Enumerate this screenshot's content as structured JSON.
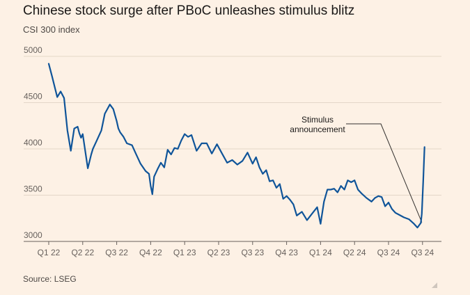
{
  "title": "Chinese stock surge after PBoC unleashes stimulus blitz",
  "subtitle": "CSI 300 index",
  "source": "Source: LSEG",
  "chart_data": {
    "type": "line",
    "title": "Chinese stock surge after PBoC unleashes stimulus blitz",
    "ylabel": "CSI 300 index",
    "ylim": [
      3000,
      5000
    ],
    "yticks": [
      3000,
      3500,
      4000,
      4500,
      5000
    ],
    "xlim": [
      0,
      11.1
    ],
    "xticks": [
      {
        "label": "Q1 22",
        "t": 0
      },
      {
        "label": "Q2 22",
        "t": 1
      },
      {
        "label": "Q3 22",
        "t": 2
      },
      {
        "label": "Q4 22",
        "t": 3
      },
      {
        "label": "Q1 23",
        "t": 4
      },
      {
        "label": "Q2 23",
        "t": 5
      },
      {
        "label": "Q3 23",
        "t": 6
      },
      {
        "label": "Q4 23",
        "t": 7
      },
      {
        "label": "Q1 24",
        "t": 8
      },
      {
        "label": "Q2 24",
        "t": 9
      },
      {
        "label": "Q3 24",
        "t": 10
      },
      {
        "label": "Q3 24",
        "t": 11
      }
    ],
    "grid": true,
    "line_color": "#0f5499",
    "annotation": {
      "lines": [
        "Stimulus",
        "announcement"
      ],
      "point": {
        "t": 10.98,
        "value": 3205
      }
    },
    "series": [
      {
        "name": "CSI 300",
        "t": [
          0,
          0.1,
          0.25,
          0.35,
          0.45,
          0.55,
          0.65,
          0.75,
          0.85,
          0.9,
          0.95,
          1.0,
          1.15,
          1.25,
          1.3,
          1.4,
          1.55,
          1.65,
          1.8,
          1.9,
          2.0,
          2.05,
          2.1,
          2.2,
          2.3,
          2.45,
          2.55,
          2.7,
          2.85,
          2.95,
          3.0,
          3.05,
          3.1,
          3.2,
          3.3,
          3.4,
          3.5,
          3.6,
          3.7,
          3.8,
          3.9,
          4.0,
          4.1,
          4.2,
          4.35,
          4.5,
          4.65,
          4.8,
          4.95,
          5.1,
          5.25,
          5.4,
          5.55,
          5.7,
          5.85,
          6.0,
          6.1,
          6.2,
          6.3,
          6.4,
          6.5,
          6.6,
          6.7,
          6.8,
          6.9,
          7.0,
          7.1,
          7.2,
          7.3,
          7.45,
          7.6,
          7.75,
          7.9,
          8.0,
          8.1,
          8.2,
          8.3,
          8.4,
          8.5,
          8.6,
          8.7,
          8.8,
          8.9,
          9.0,
          9.1,
          9.2,
          9.35,
          9.5,
          9.6,
          9.7,
          9.8,
          9.9,
          10.0,
          10.1,
          10.2,
          10.3,
          10.45,
          10.6,
          10.75,
          10.85,
          10.95,
          10.98,
          11.02,
          11.06
        ],
        "values": [
          4920,
          4780,
          4560,
          4620,
          4550,
          4200,
          3980,
          4220,
          4240,
          4170,
          4120,
          4160,
          3790,
          3940,
          4000,
          4080,
          4200,
          4380,
          4480,
          4430,
          4300,
          4220,
          4180,
          4130,
          4060,
          4040,
          3960,
          3840,
          3760,
          3730,
          3600,
          3510,
          3700,
          3780,
          3850,
          3800,
          3990,
          3940,
          4010,
          4000,
          4090,
          4160,
          4130,
          4150,
          3980,
          4060,
          4060,
          3950,
          4050,
          3950,
          3850,
          3880,
          3830,
          3870,
          3960,
          3840,
          3910,
          3800,
          3730,
          3770,
          3650,
          3660,
          3580,
          3620,
          3460,
          3490,
          3450,
          3400,
          3280,
          3320,
          3230,
          3300,
          3370,
          3190,
          3430,
          3560,
          3560,
          3570,
          3530,
          3600,
          3560,
          3660,
          3640,
          3660,
          3560,
          3520,
          3470,
          3430,
          3470,
          3490,
          3480,
          3380,
          3420,
          3350,
          3310,
          3290,
          3260,
          3240,
          3190,
          3150,
          3200,
          3300,
          3650,
          4020
        ]
      }
    ]
  }
}
